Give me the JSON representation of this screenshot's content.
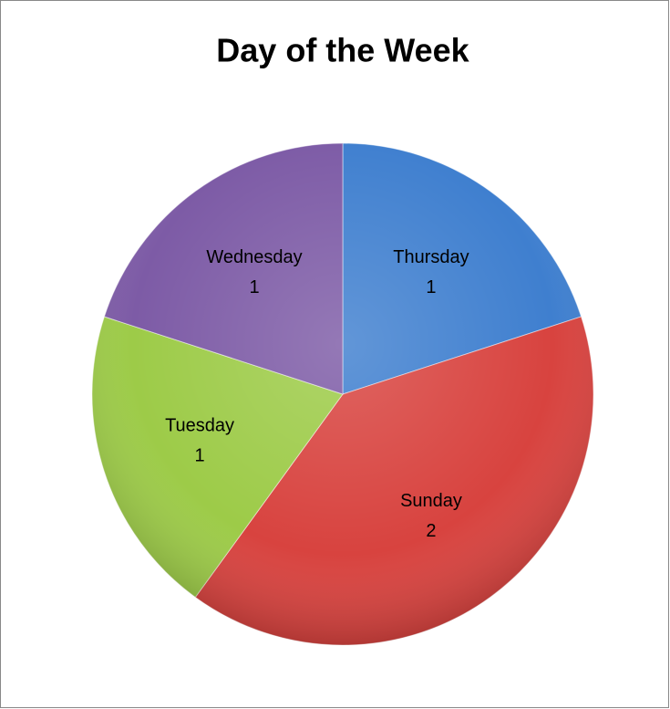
{
  "chart_data": {
    "type": "pie",
    "title": "Day of the Week",
    "categories": [
      "Thursday",
      "Sunday",
      "Tuesday",
      "Wednesday"
    ],
    "values": [
      1,
      2,
      1,
      1
    ],
    "colors": [
      "#3f7fcf",
      "#d8433f",
      "#9dcb48",
      "#7d5ba6"
    ]
  }
}
